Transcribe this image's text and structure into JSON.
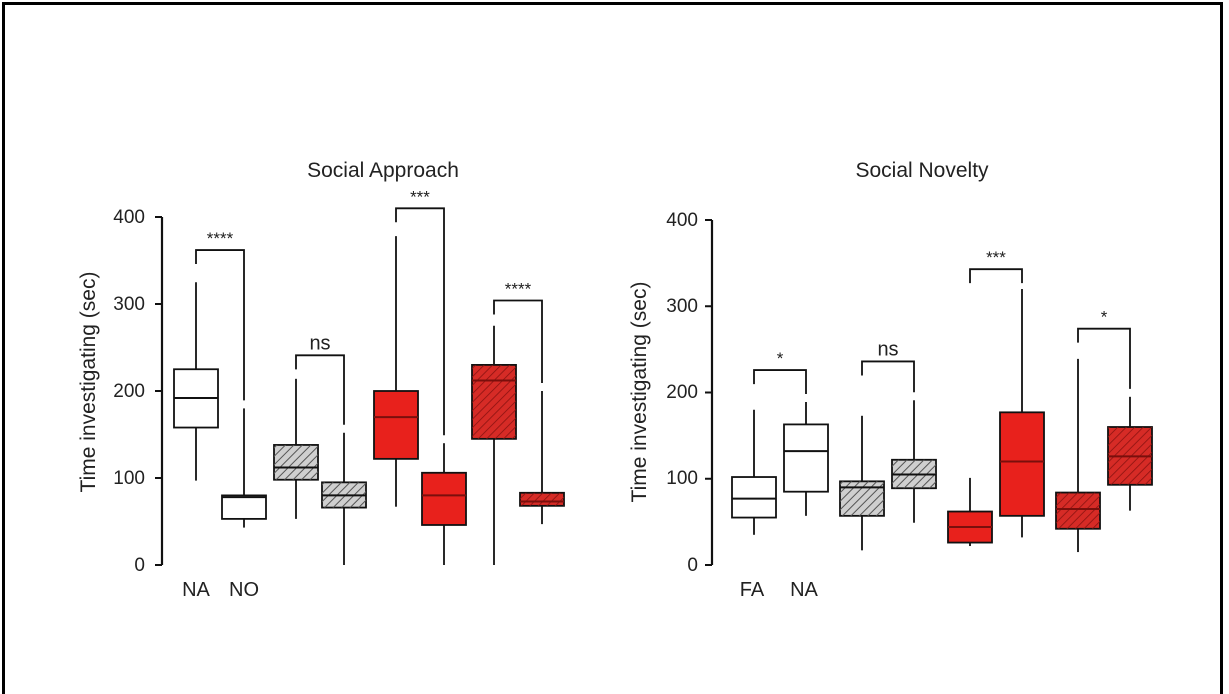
{
  "chart_data": [
    {
      "type": "box",
      "title": "Social Approach",
      "ylabel": "Time  investigating (sec)",
      "ylim": [
        0,
        400
      ],
      "yticks": [
        "0",
        "100",
        "200",
        "300",
        "400"
      ],
      "xlabels": [
        "NA",
        "NO"
      ],
      "boxes": [
        {
          "fill": "#ffffff",
          "hatch": false,
          "min": 97,
          "q1": 158,
          "median": 192,
          "q3": 225,
          "max": 325
        },
        {
          "fill": "#ffffff",
          "hatch": false,
          "min": 43,
          "q1": 53,
          "median": 78,
          "q3": 80,
          "max": 180
        },
        {
          "fill": "#cfcfcf",
          "hatch": true,
          "min": 53,
          "q1": 98,
          "median": 112,
          "q3": 138,
          "max": 214
        },
        {
          "fill": "#cfcfcf",
          "hatch": true,
          "min": 0,
          "q1": 66,
          "median": 80,
          "q3": 95,
          "max": 152
        },
        {
          "fill": "#e8211c",
          "hatch": false,
          "min": 67,
          "q1": 122,
          "median": 170,
          "q3": 200,
          "max": 378
        },
        {
          "fill": "#e8211c",
          "hatch": false,
          "min": 0,
          "q1": 46,
          "median": 80,
          "q3": 106,
          "max": 140
        },
        {
          "fill": "#d62b26",
          "hatch": true,
          "min": 0,
          "q1": 145,
          "median": 212,
          "q3": 230,
          "max": 275
        },
        {
          "fill": "#d62b26",
          "hatch": true,
          "min": 47,
          "q1": 68,
          "median": 73,
          "q3": 83,
          "max": 200
        }
      ],
      "comparisons": [
        {
          "pair": [
            0,
            1
          ],
          "label": "****",
          "y": 362
        },
        {
          "pair": [
            2,
            3
          ],
          "label": "ns",
          "y": 241
        },
        {
          "pair": [
            4,
            5
          ],
          "label": "***",
          "y": 410
        },
        {
          "pair": [
            6,
            7
          ],
          "label": "****",
          "y": 304
        }
      ]
    },
    {
      "type": "box",
      "title": "Social Novelty",
      "ylabel": "Time  investigating (sec)",
      "ylim": [
        0,
        400
      ],
      "yticks": [
        "0",
        "100",
        "200",
        "300",
        "400"
      ],
      "xlabels": [
        "FA",
        "NA"
      ],
      "boxes": [
        {
          "fill": "#ffffff",
          "hatch": false,
          "min": 35,
          "q1": 55,
          "median": 77,
          "q3": 102,
          "max": 180
        },
        {
          "fill": "#ffffff",
          "hatch": false,
          "min": 57,
          "q1": 85,
          "median": 132,
          "q3": 163,
          "max": 189
        },
        {
          "fill": "#cfcfcf",
          "hatch": true,
          "min": 17,
          "q1": 57,
          "median": 90,
          "q3": 97,
          "max": 173
        },
        {
          "fill": "#cfcfcf",
          "hatch": true,
          "min": 49,
          "q1": 89,
          "median": 105,
          "q3": 122,
          "max": 191
        },
        {
          "fill": "#e8211c",
          "hatch": false,
          "min": 22,
          "q1": 26,
          "median": 44,
          "q3": 62,
          "max": 101
        },
        {
          "fill": "#e8211c",
          "hatch": false,
          "min": 32,
          "q1": 57,
          "median": 120,
          "q3": 177,
          "max": 320
        },
        {
          "fill": "#d62b26",
          "hatch": true,
          "min": 15,
          "q1": 42,
          "median": 65,
          "q3": 84,
          "max": 239
        },
        {
          "fill": "#d62b26",
          "hatch": true,
          "min": 63,
          "q1": 93,
          "median": 126,
          "q3": 160,
          "max": 195
        }
      ],
      "comparisons": [
        {
          "pair": [
            0,
            1
          ],
          "label": "*",
          "y": 226
        },
        {
          "pair": [
            2,
            3
          ],
          "label": "ns",
          "y": 236
        },
        {
          "pair": [
            4,
            5
          ],
          "label": "***",
          "y": 343
        },
        {
          "pair": [
            6,
            7
          ],
          "label": "*",
          "y": 274
        }
      ]
    }
  ]
}
